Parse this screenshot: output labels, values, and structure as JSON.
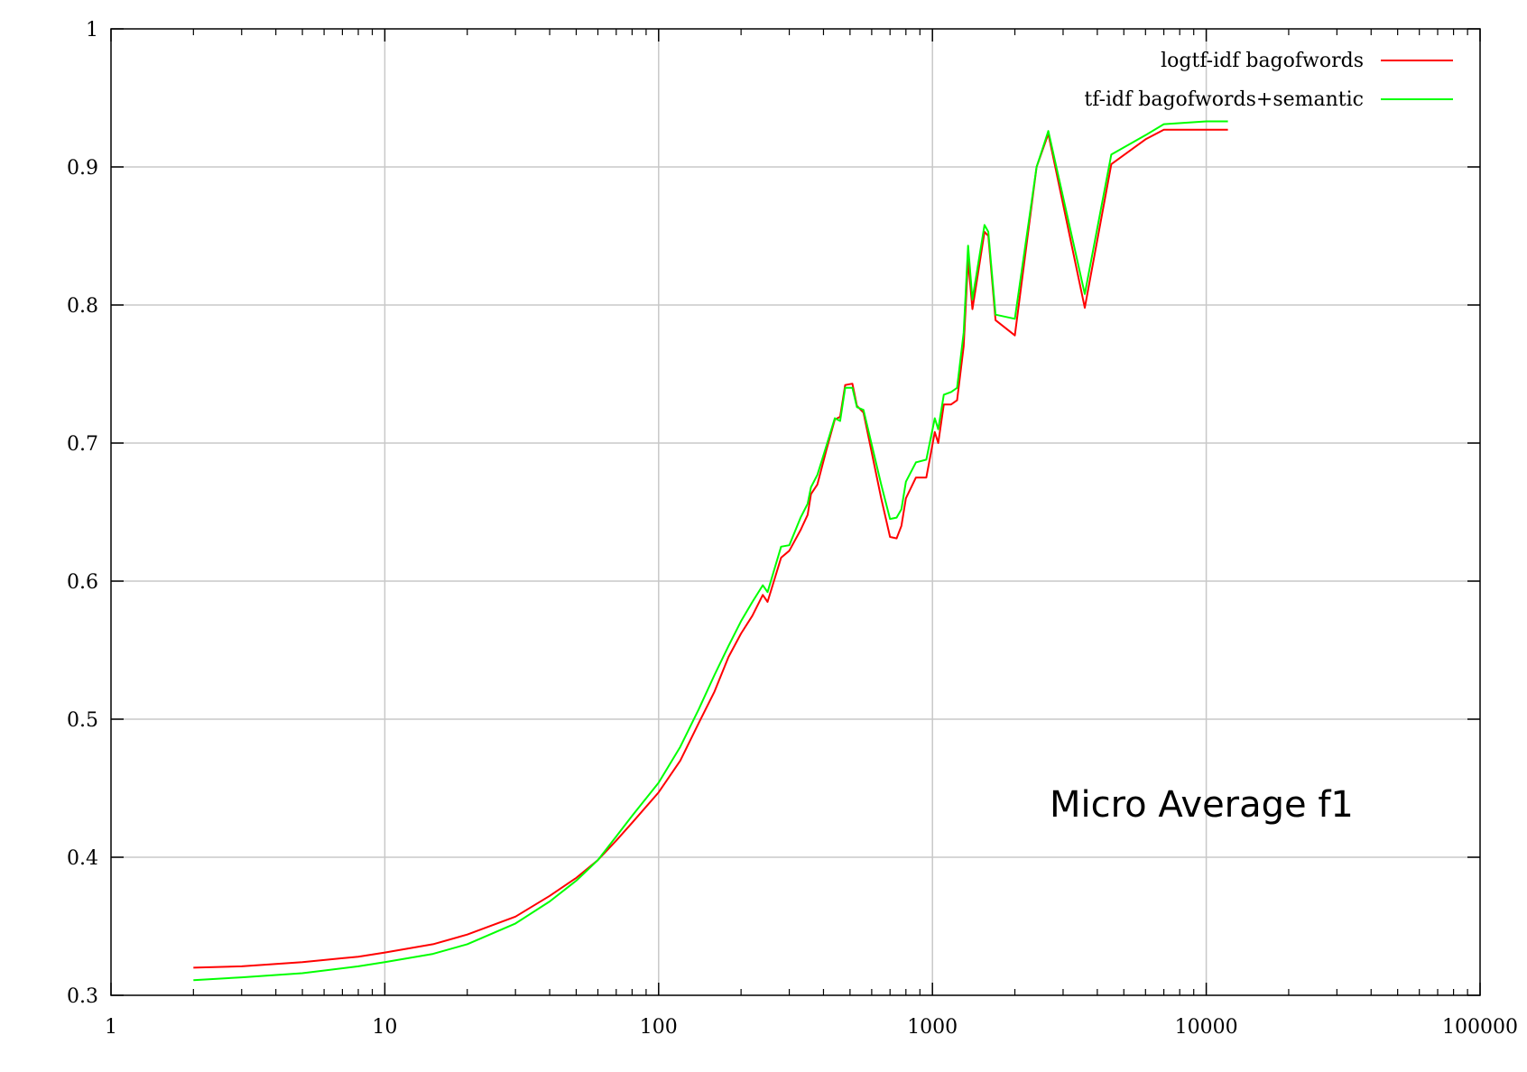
{
  "chart_data": {
    "type": "line",
    "title": "",
    "xlabel": "",
    "ylabel": "",
    "x_scale": "log",
    "xlim": [
      1,
      100000
    ],
    "ylim": [
      0.3,
      1.0
    ],
    "x_ticks": [
      1,
      10,
      100,
      1000,
      10000,
      100000
    ],
    "x_tick_labels": [
      "1",
      "10",
      "100",
      "1000",
      "10000",
      "100000"
    ],
    "y_ticks": [
      0.3,
      0.4,
      0.5,
      0.6,
      0.7,
      0.8,
      0.9,
      1.0
    ],
    "y_tick_labels": [
      "0.3",
      "0.4",
      "0.5",
      "0.6",
      "0.7",
      "0.8",
      "0.9",
      "1"
    ],
    "grid": true,
    "legend_position": "top-right",
    "annotation": "Micro Average f1",
    "series": [
      {
        "name": "logtf-idf bagofwords",
        "color": "#ff0000",
        "points": [
          [
            2,
            0.32
          ],
          [
            3,
            0.321
          ],
          [
            5,
            0.324
          ],
          [
            8,
            0.328
          ],
          [
            10,
            0.331
          ],
          [
            15,
            0.337
          ],
          [
            20,
            0.344
          ],
          [
            30,
            0.357
          ],
          [
            40,
            0.372
          ],
          [
            50,
            0.385
          ],
          [
            60,
            0.398
          ],
          [
            70,
            0.412
          ],
          [
            80,
            0.425
          ],
          [
            100,
            0.447
          ],
          [
            120,
            0.47
          ],
          [
            140,
            0.497
          ],
          [
            160,
            0.52
          ],
          [
            180,
            0.545
          ],
          [
            200,
            0.562
          ],
          [
            220,
            0.575
          ],
          [
            240,
            0.59
          ],
          [
            250,
            0.585
          ],
          [
            280,
            0.617
          ],
          [
            300,
            0.622
          ],
          [
            330,
            0.637
          ],
          [
            350,
            0.648
          ],
          [
            360,
            0.663
          ],
          [
            380,
            0.67
          ],
          [
            410,
            0.695
          ],
          [
            440,
            0.717
          ],
          [
            460,
            0.719
          ],
          [
            480,
            0.742
          ],
          [
            510,
            0.743
          ],
          [
            530,
            0.727
          ],
          [
            560,
            0.722
          ],
          [
            650,
            0.66
          ],
          [
            700,
            0.632
          ],
          [
            740,
            0.631
          ],
          [
            770,
            0.64
          ],
          [
            800,
            0.66
          ],
          [
            870,
            0.675
          ],
          [
            950,
            0.675
          ],
          [
            1020,
            0.708
          ],
          [
            1050,
            0.7
          ],
          [
            1100,
            0.728
          ],
          [
            1170,
            0.728
          ],
          [
            1230,
            0.731
          ],
          [
            1300,
            0.77
          ],
          [
            1350,
            0.833
          ],
          [
            1400,
            0.797
          ],
          [
            1550,
            0.853
          ],
          [
            1600,
            0.85
          ],
          [
            1700,
            0.789
          ],
          [
            2000,
            0.778
          ],
          [
            2400,
            0.9
          ],
          [
            2650,
            0.924
          ],
          [
            3600,
            0.798
          ],
          [
            4500,
            0.902
          ],
          [
            6000,
            0.92
          ],
          [
            7000,
            0.927
          ],
          [
            10000,
            0.927
          ],
          [
            12000,
            0.927
          ]
        ]
      },
      {
        "name": "tf-idf bagofwords+semantic",
        "color": "#00ff00",
        "points": [
          [
            2,
            0.311
          ],
          [
            3,
            0.313
          ],
          [
            5,
            0.316
          ],
          [
            8,
            0.321
          ],
          [
            10,
            0.324
          ],
          [
            15,
            0.33
          ],
          [
            20,
            0.337
          ],
          [
            30,
            0.352
          ],
          [
            40,
            0.368
          ],
          [
            50,
            0.383
          ],
          [
            60,
            0.398
          ],
          [
            70,
            0.415
          ],
          [
            80,
            0.43
          ],
          [
            100,
            0.454
          ],
          [
            120,
            0.48
          ],
          [
            140,
            0.507
          ],
          [
            160,
            0.532
          ],
          [
            180,
            0.553
          ],
          [
            200,
            0.571
          ],
          [
            220,
            0.585
          ],
          [
            240,
            0.597
          ],
          [
            250,
            0.592
          ],
          [
            280,
            0.625
          ],
          [
            300,
            0.626
          ],
          [
            330,
            0.646
          ],
          [
            350,
            0.656
          ],
          [
            360,
            0.668
          ],
          [
            380,
            0.677
          ],
          [
            410,
            0.698
          ],
          [
            440,
            0.718
          ],
          [
            460,
            0.716
          ],
          [
            480,
            0.74
          ],
          [
            510,
            0.74
          ],
          [
            530,
            0.726
          ],
          [
            560,
            0.724
          ],
          [
            650,
            0.67
          ],
          [
            700,
            0.645
          ],
          [
            740,
            0.646
          ],
          [
            770,
            0.652
          ],
          [
            800,
            0.672
          ],
          [
            870,
            0.686
          ],
          [
            950,
            0.688
          ],
          [
            1020,
            0.718
          ],
          [
            1050,
            0.71
          ],
          [
            1100,
            0.735
          ],
          [
            1170,
            0.737
          ],
          [
            1230,
            0.74
          ],
          [
            1300,
            0.78
          ],
          [
            1350,
            0.843
          ],
          [
            1400,
            0.804
          ],
          [
            1550,
            0.858
          ],
          [
            1600,
            0.853
          ],
          [
            1700,
            0.793
          ],
          [
            2000,
            0.79
          ],
          [
            2400,
            0.9
          ],
          [
            2650,
            0.926
          ],
          [
            3600,
            0.808
          ],
          [
            4500,
            0.909
          ],
          [
            6000,
            0.923
          ],
          [
            7000,
            0.931
          ],
          [
            10000,
            0.933
          ],
          [
            12000,
            0.933
          ]
        ]
      }
    ]
  }
}
